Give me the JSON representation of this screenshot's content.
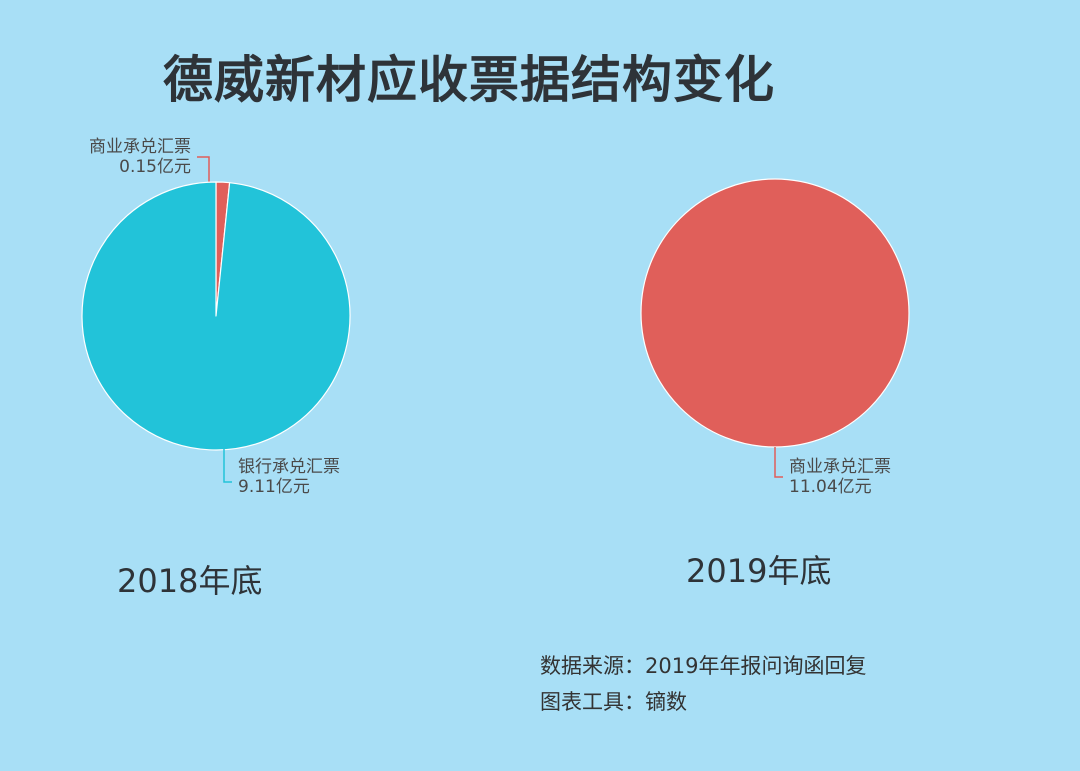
{
  "chart_data": [
    {
      "type": "pie",
      "title": "",
      "slices": [
        {
          "label": "商业承兑汇票",
          "value": 0.15,
          "value_label": "0.15亿元",
          "color": "#e05f5a"
        },
        {
          "label": "银行承兑汇票",
          "value": 9.11,
          "value_label": "9.11亿元",
          "color": "#22c3d9"
        }
      ]
    },
    {
      "type": "pie",
      "title": "",
      "slices": [
        {
          "label": "商业承兑汇票",
          "value": 11.04,
          "value_label": "11.04亿元",
          "color": "#e05f5a"
        }
      ]
    }
  ],
  "page": {
    "title": "德威新材应收票据结构变化",
    "years": [
      "2018年底",
      "2019年底"
    ],
    "source_line": "数据来源：2019年年报问询函回复",
    "tool_line": "图表工具：镝数"
  }
}
